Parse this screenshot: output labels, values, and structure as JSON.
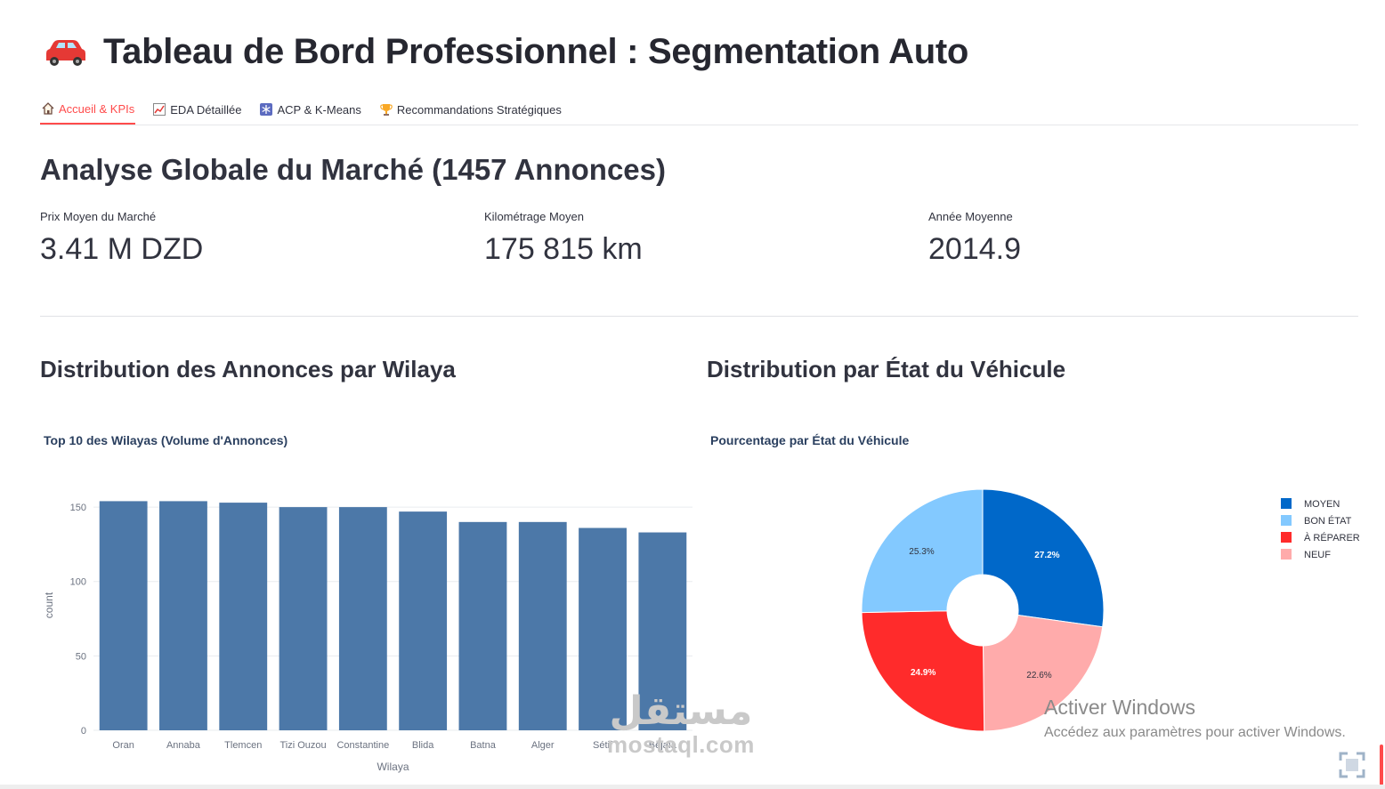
{
  "header": {
    "title": "Tableau de Bord Professionnel : Segmentation Auto",
    "icon": "car-icon"
  },
  "tabs": [
    {
      "label": "Accueil & KPIs",
      "icon": "house-icon",
      "active": true
    },
    {
      "label": "EDA Détaillée",
      "icon": "chart-line-icon",
      "active": false
    },
    {
      "label": "ACP & K-Means",
      "icon": "snowflake-icon",
      "active": false
    },
    {
      "label": "Recommandations Stratégiques",
      "icon": "trophy-icon",
      "active": false
    }
  ],
  "main": {
    "heading": "Analyse Globale du Marché (1457 Annonces)",
    "metrics": [
      {
        "label": "Prix Moyen du Marché",
        "value": "3.41 M DZD"
      },
      {
        "label": "Kilométrage Moyen",
        "value": "175 815 km"
      },
      {
        "label": "Année Moyenne",
        "value": "2014.9"
      }
    ],
    "left_section": {
      "heading": "Distribution des Annonces par Wilaya"
    },
    "right_section": {
      "heading": "Distribution par État du Véhicule"
    }
  },
  "chart_data": [
    {
      "type": "bar",
      "title": "Top 10 des Wilayas (Volume d'Annonces)",
      "xlabel": "Wilaya",
      "ylabel": "count",
      "categories": [
        "Oran",
        "Annaba",
        "Tlemcen",
        "Tizi Ouzou",
        "Constantine",
        "Blida",
        "Batna",
        "Alger",
        "Sétif",
        "Béjaïa"
      ],
      "values": [
        154,
        154,
        153,
        150,
        150,
        147,
        140,
        140,
        136,
        133
      ],
      "ylim": [
        0,
        168
      ],
      "yticks": [
        0,
        50,
        100,
        150
      ],
      "color": "#4c78a8",
      "grid": true
    },
    {
      "type": "pie",
      "donut": true,
      "title": "Pourcentage par État du Véhicule",
      "labels": [
        "MOYEN",
        "NEUF",
        "À RÉPARER",
        "BON ÉTAT"
      ],
      "values": [
        27.2,
        22.6,
        24.9,
        25.3
      ],
      "value_labels": [
        "27.2%",
        "22.6%",
        "24.9%",
        "25.3%"
      ],
      "colors": [
        "#0068c9",
        "#ffabab",
        "#ff2b2b",
        "#83c9ff"
      ],
      "label_colors": [
        "#ffffff",
        "#31333f",
        "#ffffff",
        "#31333f"
      ],
      "legend": [
        {
          "label": "MOYEN",
          "color": "#0068c9"
        },
        {
          "label": "BON ÉTAT",
          "color": "#83c9ff"
        },
        {
          "label": "À RÉPARER",
          "color": "#ff2b2b"
        },
        {
          "label": "NEUF",
          "color": "#ffabab"
        }
      ],
      "legend_position": "right"
    }
  ],
  "overlay": {
    "activate_title": "Activer Windows",
    "activate_sub": "Accédez aux paramètres pour activer Windows.",
    "mostaql_arabic": "مستقل",
    "mostaql_latin": "mostaql.com"
  }
}
